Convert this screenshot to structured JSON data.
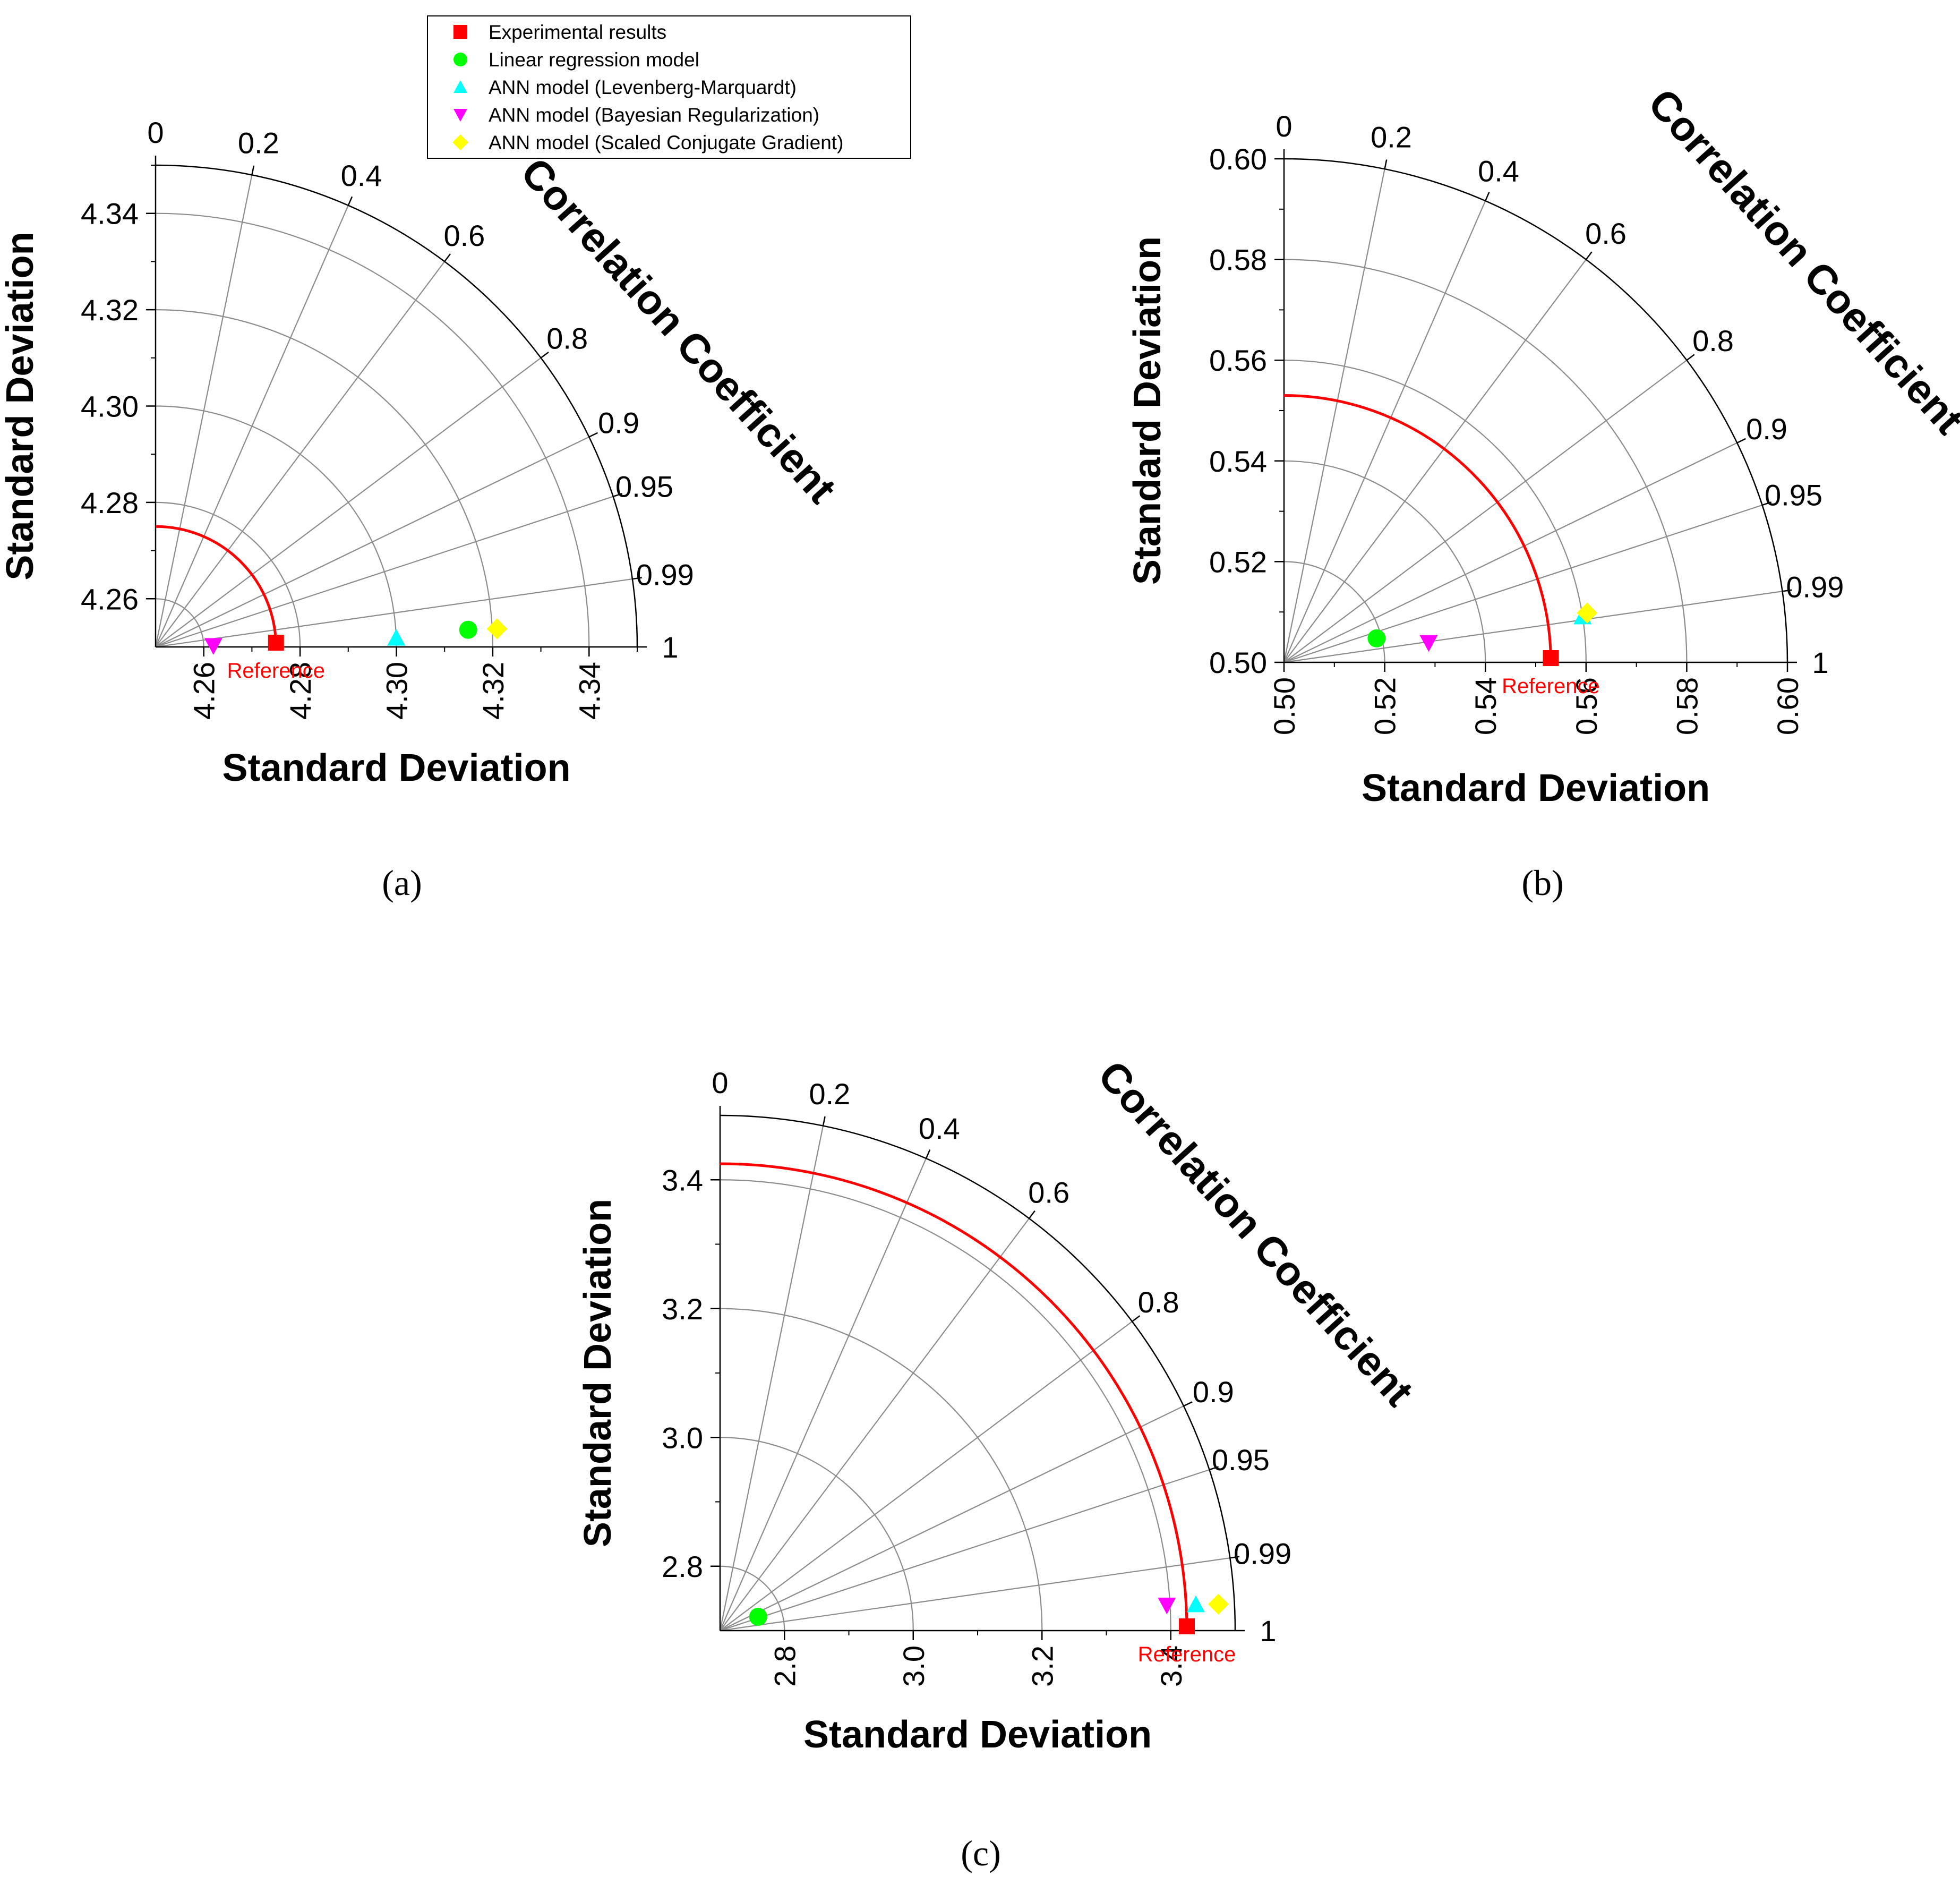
{
  "legend": {
    "entries": [
      {
        "label": "Experimental results",
        "marker": "square",
        "color": "#ff0000"
      },
      {
        "label": "Linear regression model",
        "marker": "circle",
        "color": "#00ff00"
      },
      {
        "label": "ANN model (Levenberg-Marquardt)",
        "marker": "triangle-up",
        "color": "#00ffff"
      },
      {
        "label": "ANN model (Bayesian Regularization)",
        "marker": "triangle-down",
        "color": "#ff00ff"
      },
      {
        "label": "ANN model (Scaled Conjugate Gradient)",
        "marker": "diamond",
        "color": "#ffff00"
      }
    ]
  },
  "chart_data": [
    {
      "type": "taylor",
      "panel_label": "(a)",
      "xlabel": "Standard Deviation",
      "ylabel": "Standard Deviation",
      "arc_label": "Correlation Coefficient",
      "reference_label": "Reference",
      "sd_range": [
        4.25,
        4.35
      ],
      "sd_ticks": [
        4.26,
        4.28,
        4.3,
        4.32,
        4.34
      ],
      "sd_tick_labels": [
        "4.26",
        "4.28",
        "4.30",
        "4.32",
        "4.34"
      ],
      "corr_ticks": [
        0,
        0.2,
        0.4,
        0.6,
        0.8,
        0.9,
        0.95,
        0.99,
        1
      ],
      "corr_tick_labels": [
        "0",
        "0.2",
        "0.4",
        "0.6",
        "0.8",
        "0.9",
        "0.95",
        "0.99",
        "1"
      ],
      "reference_sd": 4.275,
      "points": [
        {
          "series": "Experimental results",
          "marker": "square",
          "color": "#ff0000",
          "sd": 4.275,
          "corr": 1.0
        },
        {
          "series": "Linear regression model",
          "marker": "circle",
          "color": "#00ff00",
          "sd": 4.315,
          "corr": 0.9985
        },
        {
          "series": "ANN model (Levenberg-Marquardt)",
          "marker": "triangle-up",
          "color": "#00ffff",
          "sd": 4.3,
          "corr": 0.9993
        },
        {
          "series": "ANN model (Bayesian Regularization)",
          "marker": "triangle-down",
          "color": "#ff00ff",
          "sd": 4.262,
          "corr": 0.9998
        },
        {
          "series": "ANN model (Scaled Conjugate Gradient)",
          "marker": "diamond",
          "color": "#ffff00",
          "sd": 4.321,
          "corr": 0.9986
        }
      ]
    },
    {
      "type": "taylor",
      "panel_label": "(b)",
      "xlabel": "Standard Deviation",
      "ylabel": "Standard Deviation",
      "arc_label": "Correlation Coefficient",
      "reference_label": "Reference",
      "sd_range": [
        0.5,
        0.6
      ],
      "sd_ticks": [
        0.5,
        0.52,
        0.54,
        0.56,
        0.58,
        0.6
      ],
      "sd_tick_labels": [
        "0.50",
        "0.52",
        "0.54",
        "0.56",
        "0.58",
        "0.60"
      ],
      "corr_ticks": [
        0,
        0.2,
        0.4,
        0.6,
        0.8,
        0.9,
        0.95,
        0.99,
        1
      ],
      "corr_tick_labels": [
        "0",
        "0.2",
        "0.4",
        "0.6",
        "0.8",
        "0.9",
        "0.95",
        "0.99",
        "1"
      ],
      "reference_sd": 0.553,
      "points": [
        {
          "series": "Experimental results",
          "marker": "square",
          "color": "#ff0000",
          "sd": 0.553,
          "corr": 1.0
        },
        {
          "series": "Linear regression model",
          "marker": "circle",
          "color": "#00ff00",
          "sd": 0.519,
          "corr": 0.968
        },
        {
          "series": "ANN model (Levenberg-Marquardt)",
          "marker": "triangle-up",
          "color": "#00ffff",
          "sd": 0.56,
          "corr": 0.9885
        },
        {
          "series": "ANN model (Bayesian Regularization)",
          "marker": "triangle-down",
          "color": "#ff00ff",
          "sd": 0.529,
          "corr": 0.991
        },
        {
          "series": "ANN model (Scaled Conjugate Gradient)",
          "marker": "diamond",
          "color": "#ffff00",
          "sd": 0.561,
          "corr": 0.987
        }
      ]
    },
    {
      "type": "taylor",
      "panel_label": "(c)",
      "xlabel": "Standard Deviation",
      "ylabel": "Standard Deviation",
      "arc_label": "Correlation Coefficient",
      "reference_label": "Reference",
      "sd_range": [
        2.7,
        3.5
      ],
      "sd_ticks": [
        2.8,
        3.0,
        3.2,
        3.4
      ],
      "sd_tick_labels": [
        "2.8",
        "3.0",
        "3.2",
        "3.4"
      ],
      "corr_ticks": [
        0,
        0.2,
        0.4,
        0.6,
        0.8,
        0.9,
        0.95,
        0.99,
        1
      ],
      "corr_tick_labels": [
        "0",
        "0.2",
        "0.4",
        "0.6",
        "0.8",
        "0.9",
        "0.95",
        "0.99",
        "1"
      ],
      "reference_sd": 3.425,
      "points": [
        {
          "series": "Experimental results",
          "marker": "square",
          "color": "#ff0000",
          "sd": 3.425,
          "corr": 1.0
        },
        {
          "series": "Linear regression model",
          "marker": "circle",
          "color": "#00ff00",
          "sd": 2.763,
          "corr": 0.94
        },
        {
          "series": "ANN model (Levenberg-Marquardt)",
          "marker": "triangle-up",
          "color": "#00ffff",
          "sd": 3.44,
          "corr": 0.9985
        },
        {
          "series": "ANN model (Bayesian Regularization)",
          "marker": "triangle-down",
          "color": "#ff00ff",
          "sd": 3.395,
          "corr": 0.9984
        },
        {
          "series": "ANN model (Scaled Conjugate Gradient)",
          "marker": "diamond",
          "color": "#ffff00",
          "sd": 3.475,
          "corr": 0.9986
        }
      ]
    }
  ]
}
